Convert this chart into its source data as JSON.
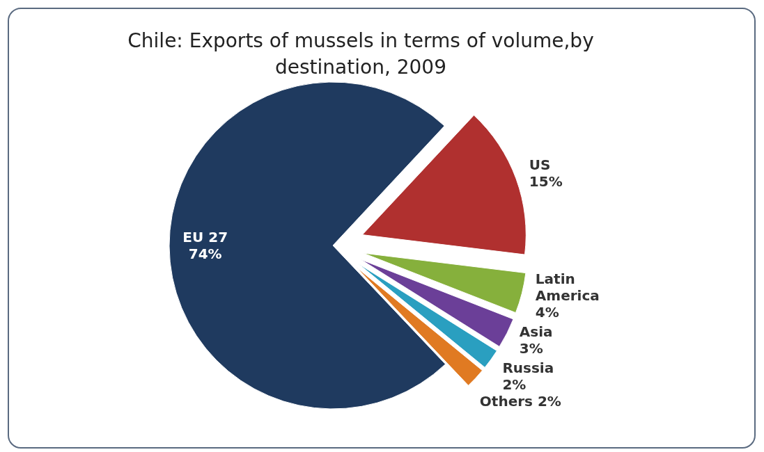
{
  "chart_data": {
    "type": "pie",
    "title": "Chile: Exports of mussels in terms of volume,by destination, 2009",
    "categories": [
      "US",
      "Latin America",
      "Asia",
      "Russia",
      "Others",
      "EU 27"
    ],
    "values": [
      15,
      4,
      3,
      2,
      2,
      74
    ],
    "value_labels": [
      "15%",
      "4%",
      "3%",
      "2%",
      "2%",
      "74%"
    ],
    "colors": [
      "#b0302f",
      "#86b03c",
      "#6b3f98",
      "#2a9fc0",
      "#e07a22",
      "#1f3a5f"
    ],
    "legend": false
  }
}
